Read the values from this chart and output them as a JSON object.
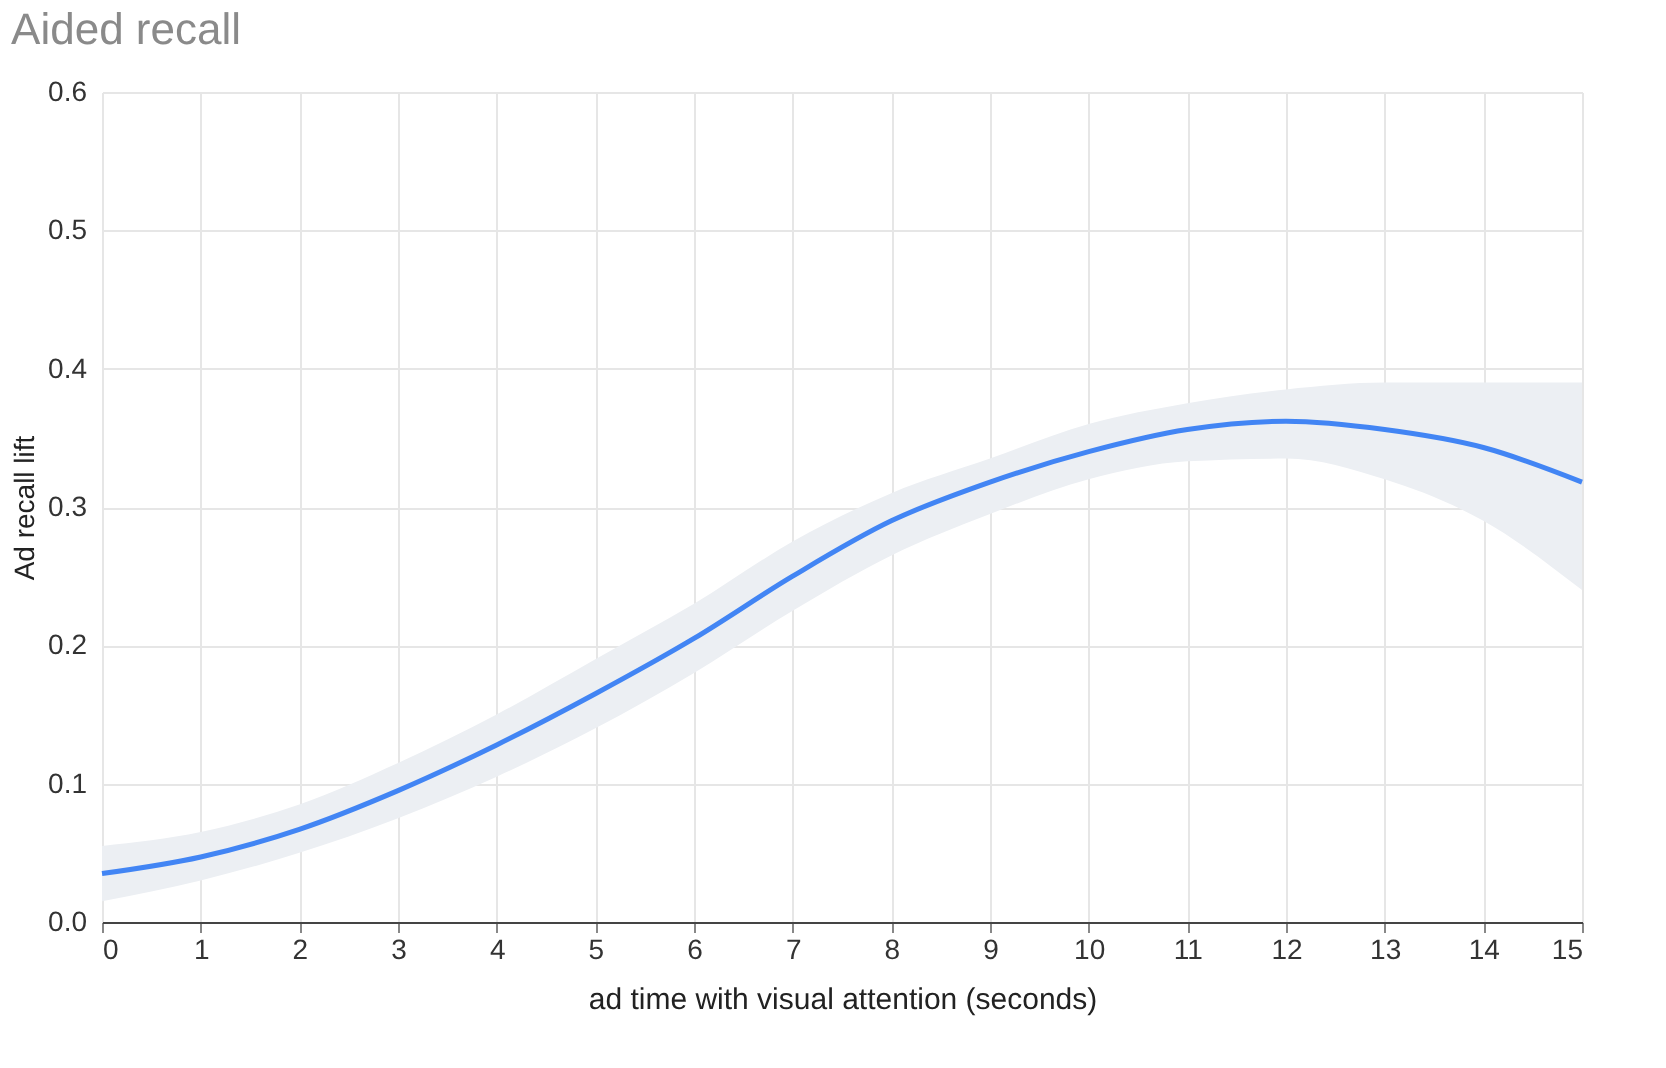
{
  "chart_data": {
    "type": "line",
    "title": "Aided recall",
    "xlabel": "ad time with visual attention (seconds)",
    "ylabel": "Ad recall lift",
    "x": [
      0,
      1,
      2,
      3,
      4,
      5,
      6,
      7,
      8,
      9,
      10,
      11,
      12,
      13,
      14,
      15
    ],
    "series": [
      {
        "color": "#4285f4",
        "values": [
          0.035,
          0.047,
          0.067,
          0.095,
          0.128,
          0.165,
          0.205,
          0.25,
          0.29,
          0.318,
          0.34,
          0.356,
          0.362,
          0.356,
          0.343,
          0.318
        ],
        "lower": [
          0.015,
          0.03,
          0.05,
          0.075,
          0.105,
          0.14,
          0.18,
          0.225,
          0.265,
          0.295,
          0.32,
          0.333,
          0.335,
          0.32,
          0.29,
          0.24
        ],
        "upper": [
          0.055,
          0.065,
          0.085,
          0.115,
          0.15,
          0.19,
          0.23,
          0.275,
          0.31,
          0.335,
          0.36,
          0.375,
          0.385,
          0.39,
          0.39,
          0.39
        ]
      }
    ],
    "xlim": [
      0,
      15
    ],
    "xticks": [
      0,
      1,
      2,
      3,
      4,
      5,
      6,
      7,
      8,
      9,
      10,
      11,
      12,
      13,
      14,
      15
    ],
    "ylim": [
      0,
      0.6
    ],
    "yticks": [
      {
        "value": 0,
        "label": "0.0"
      },
      0.1,
      0.2,
      0.3,
      0.4,
      0.5,
      0.6
    ],
    "grid": true,
    "marker": "none",
    "line_style": "solid"
  }
}
